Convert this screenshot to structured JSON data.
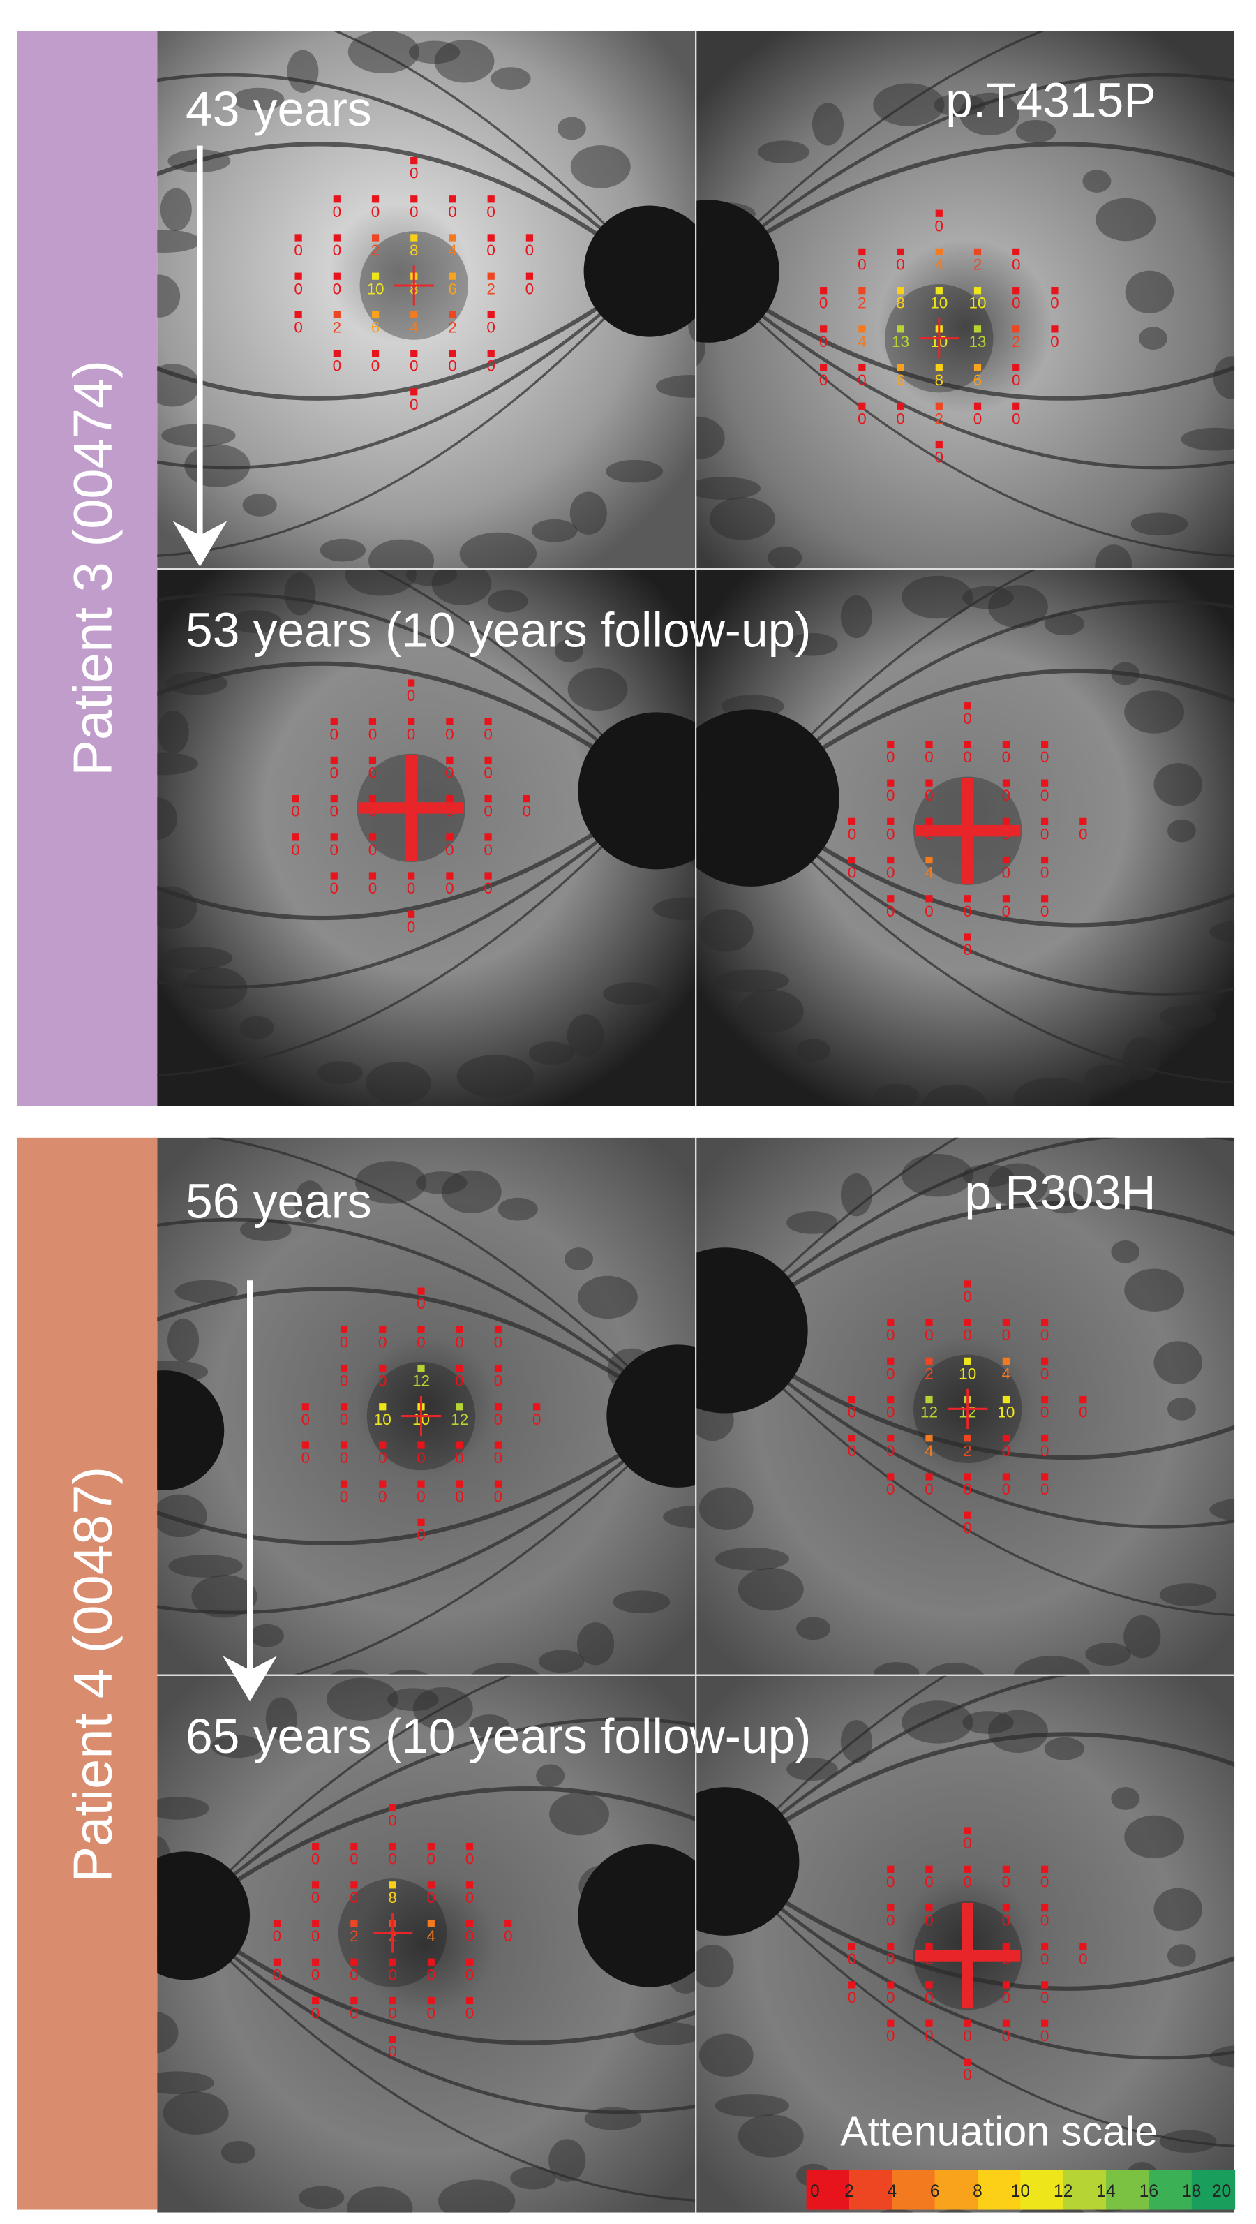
{
  "patients": [
    {
      "name": "Patient 3 (00474)",
      "variant": "p.T4315P",
      "visits": [
        {
          "age": "43 years",
          "eyes": [
            {
              "points": [
                8,
                10,
                6,
                8,
                4,
                6,
                4,
                2,
                2,
                0,
                2,
                0,
                0,
                2,
                0,
                0,
                0,
                0,
                0,
                0,
                0,
                0,
                0,
                0,
                0,
                0,
                0,
                0,
                0,
                0,
                0,
                0
              ]
            },
            {
              "points": [
                10,
                13,
                13,
                10,
                8,
                6,
                10,
                8,
                6,
                4,
                2,
                4,
                2,
                0,
                0,
                2,
                0,
                0,
                2,
                0,
                0,
                0,
                0,
                0,
                0,
                0,
                0,
                0,
                0,
                0,
                0,
                0
              ]
            }
          ]
        },
        {
          "age": "53 years (10 years follow-up)",
          "eyes": [
            {
              "points": [
                0,
                0,
                0,
                0,
                4,
                0,
                0,
                0,
                0,
                0,
                0,
                0,
                0,
                0,
                0,
                0,
                0,
                0,
                0,
                0,
                0,
                0,
                0,
                0,
                0,
                0,
                0,
                0,
                0,
                0
              ]
            },
            {
              "points": [
                0,
                0,
                0,
                0,
                0,
                4,
                0,
                0,
                0,
                0,
                0,
                0,
                0,
                0,
                0,
                0,
                0,
                0,
                0,
                0,
                0,
                0,
                0,
                0,
                0,
                0,
                0,
                0,
                0,
                0
              ]
            }
          ]
        }
      ]
    },
    {
      "name": "Patient 4 (00487)",
      "variant": "p.R303H",
      "visits": [
        {
          "age": "56 years",
          "eyes": [
            {
              "points": [
                10,
                10,
                12,
                12,
                0,
                0,
                0,
                0,
                0,
                0,
                0,
                0,
                0,
                0,
                0,
                0,
                0,
                0,
                0,
                0,
                0,
                0,
                0,
                0,
                0,
                0,
                0,
                0,
                0,
                0
              ]
            },
            {
              "points": [
                12,
                12,
                10,
                10,
                2,
                4,
                4,
                2,
                0,
                0,
                0,
                0,
                0,
                0,
                0,
                0,
                0,
                0,
                0,
                0,
                0,
                0,
                0,
                0,
                0,
                0,
                0,
                0,
                0,
                0
              ]
            }
          ]
        },
        {
          "age": "65 years (10 years follow-up)",
          "eyes": [
            {
              "points": [
                2,
                2,
                4,
                8,
                0,
                0,
                0,
                0,
                0,
                0,
                0,
                0,
                0,
                0,
                0,
                0,
                0,
                0,
                0,
                0,
                0,
                0,
                0,
                0,
                0,
                0,
                0,
                0,
                0,
                0
              ]
            },
            {
              "points": [
                0,
                0,
                0,
                0,
                0,
                0,
                0,
                0,
                0,
                0,
                0,
                0,
                0,
                0,
                0,
                0,
                0,
                0,
                0,
                0,
                0,
                0,
                0,
                0,
                0,
                0,
                0,
                0,
                0,
                0
              ]
            }
          ]
        }
      ]
    }
  ],
  "scale": {
    "title": "Attenuation scale",
    "ticks": [
      0,
      2,
      4,
      6,
      8,
      10,
      12,
      14,
      16,
      18,
      20
    ],
    "colors": [
      "#e8141c",
      "#ee4623",
      "#f47a20",
      "#f9a21b",
      "#fcd016",
      "#eee51a",
      "#b6d433",
      "#7bc242",
      "#3cb054",
      "#1a9e5b"
    ]
  }
}
